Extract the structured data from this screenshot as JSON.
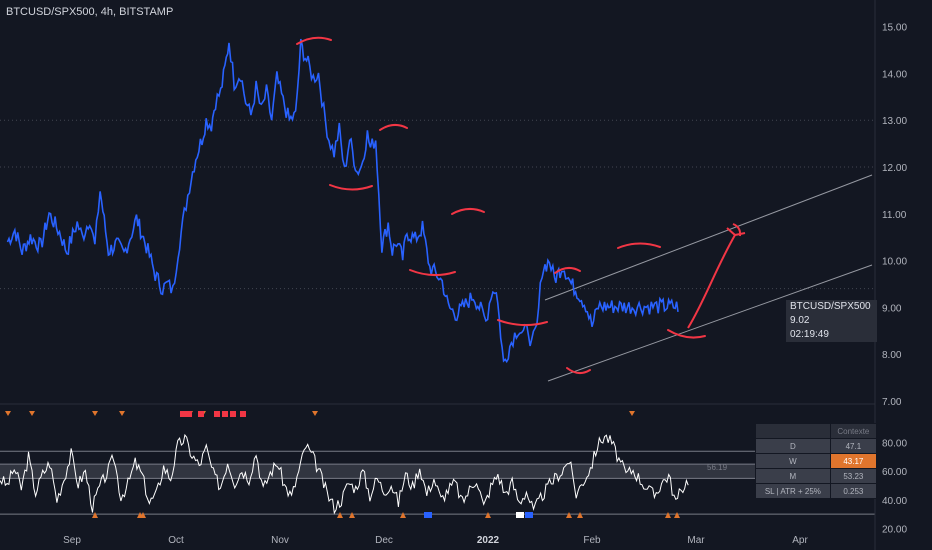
{
  "header": {
    "title": "BTCUSD/SPX500, 4h, BITSTAMP"
  },
  "price_tag": {
    "symbol": "BTCUSD/SPX500",
    "price": "9.02",
    "countdown": "02:19:49"
  },
  "context_table": {
    "header": "Contexte",
    "rows": [
      {
        "label": "D",
        "value": "47.1",
        "highlight": false
      },
      {
        "label": "W",
        "value": "43.17",
        "highlight": true
      },
      {
        "label": "M",
        "value": "53.23",
        "highlight": false
      },
      {
        "label": "SL | ATR + 25%",
        "value": "0.253",
        "highlight": false
      }
    ]
  },
  "indicator": {
    "current_value": "56.19"
  },
  "colors": {
    "background": "#131722",
    "price_line": "#2962ff",
    "annotation": "#f23645",
    "indicator_line": "#ffffff",
    "highlight": "#e0752d"
  },
  "chart_data": [
    {
      "type": "line",
      "title": "BTCUSD/SPX500, 4h, BITSTAMP",
      "xlabel": "",
      "ylabel": "",
      "x_tick_labels": [
        "Sep",
        "Oct",
        "Nov",
        "Dec",
        "2022",
        "Feb",
        "Mar",
        "Apr"
      ],
      "y_tick_labels": [
        "7.00",
        "8.00",
        "9.00",
        "10.00",
        "11.00",
        "12.00",
        "13.00",
        "14.00",
        "15.00"
      ],
      "ylim": [
        7.0,
        15.5
      ],
      "x_months": {
        "Sep": 0,
        "Oct": 1,
        "Nov": 2,
        "Dec": 3,
        "2022": 4,
        "Feb": 5,
        "Mar": 6,
        "Apr": 7
      },
      "series": [
        {
          "values_x_month": [
            -0.62,
            -0.55,
            -0.48,
            -0.4,
            -0.3,
            -0.22,
            -0.12,
            -0.05,
            0.05,
            0.1,
            0.17,
            0.22,
            0.27,
            0.35,
            0.43,
            0.5,
            0.56,
            0.62,
            0.7,
            0.76,
            0.8,
            0.87,
            0.92,
            0.97,
            1.02,
            1.08,
            1.13,
            1.19,
            1.25,
            1.29,
            1.34,
            1.38,
            1.43,
            1.47,
            1.51,
            1.56,
            1.62,
            1.67,
            1.72,
            1.77,
            1.82,
            1.87,
            1.92,
            1.97,
            2.03,
            2.09,
            2.15,
            2.2,
            2.27,
            2.32,
            2.37,
            2.42,
            2.47,
            2.52,
            2.57,
            2.62,
            2.67,
            2.74,
            2.78,
            2.84,
            2.87,
            2.92,
            2.98,
            3.04,
            3.08,
            3.12,
            3.18,
            3.22,
            3.3,
            3.37,
            3.44,
            3.51,
            3.56,
            3.62,
            3.7,
            3.74,
            3.8,
            3.86,
            3.93,
            3.98,
            4.03,
            4.08,
            4.15,
            4.24,
            4.29,
            4.34,
            4.39,
            4.42,
            4.47,
            4.52,
            4.59,
            4.64,
            4.72,
            4.8,
            4.87,
            4.94,
            5.0,
            5.06,
            5.12,
            5.19,
            5.25,
            5.31,
            5.37,
            5.42,
            5.47,
            5.52,
            5.57,
            5.62,
            5.67,
            5.71,
            5.75,
            5.8,
            5.84
          ],
          "values": [
            10.4,
            10.65,
            10.2,
            10.5,
            10.3,
            11.0,
            10.6,
            10.2,
            10.8,
            10.5,
            10.9,
            10.3,
            11.5,
            10.2,
            10.35,
            10.15,
            10.5,
            10.9,
            10.4,
            10.0,
            9.7,
            9.4,
            9.5,
            9.35,
            10.2,
            11.0,
            11.6,
            12.2,
            12.6,
            13.0,
            12.9,
            13.4,
            13.6,
            14.1,
            14.7,
            13.8,
            14.0,
            13.4,
            13.1,
            13.7,
            13.2,
            13.6,
            13.0,
            13.9,
            13.4,
            13.0,
            13.1,
            14.6,
            14.2,
            13.9,
            14.0,
            13.2,
            12.6,
            12.3,
            12.8,
            11.9,
            12.6,
            11.9,
            12.0,
            12.7,
            12.4,
            12.6,
            10.3,
            10.8,
            10.2,
            10.4,
            10.05,
            10.6,
            10.45,
            10.7,
            9.85,
            9.7,
            9.55,
            9.0,
            8.85,
            8.95,
            9.1,
            9.25,
            8.95,
            8.7,
            9.3,
            9.4,
            7.8,
            8.35,
            8.55,
            8.45,
            8.5,
            8.2,
            8.55,
            9.8,
            10.0,
            9.6,
            9.9,
            9.5,
            9.3,
            9.05,
            8.6,
            9.02,
            9.02,
            9.02,
            9.02,
            9.02,
            9.02,
            9.02,
            9.02,
            9.02,
            9.02,
            9.02,
            9.02,
            9.02,
            9.02,
            9.02,
            9.02
          ],
          "color": "#2962ff"
        }
      ]
    },
    {
      "type": "line",
      "title": "",
      "y_tick_labels": [
        "20.00",
        "40.00",
        "60.00",
        "80.00"
      ],
      "ylim": [
        14,
        86
      ],
      "levels": [
        30,
        55,
        65,
        74
      ],
      "series": [
        {
          "values": [
            55,
            50,
            62,
            48,
            70,
            45,
            58,
            66,
            40,
            55,
            72,
            51,
            60,
            35,
            49,
            58,
            70,
            42,
            51,
            66,
            57,
            38,
            44,
            63,
            55,
            78,
            83,
            71,
            64,
            76,
            58,
            49,
            67,
            52,
            61,
            55,
            73,
            47,
            59,
            66,
            50,
            42,
            60,
            78,
            70,
            58,
            44,
            35,
            40,
            52,
            48,
            60,
            43,
            55,
            46,
            51,
            38,
            58,
            49,
            63,
            44,
            55,
            40,
            47,
            52,
            38,
            47,
            55,
            35,
            49,
            58,
            44,
            52,
            38,
            46,
            32,
            41,
            49,
            55,
            60,
            68,
            44,
            53,
            62,
            78,
            85,
            80,
            68,
            58,
            61,
            54,
            48,
            43,
            52,
            57,
            38,
            49,
            56
          ],
          "color": "#ffffff"
        }
      ]
    }
  ]
}
